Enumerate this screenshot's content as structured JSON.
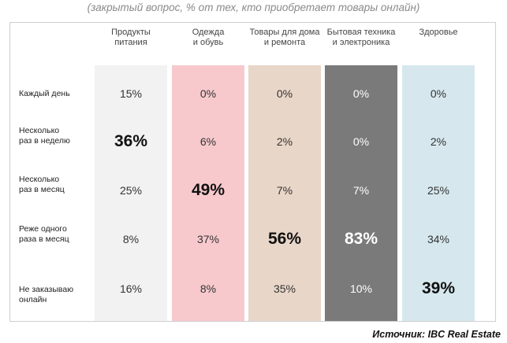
{
  "subtitle": "(закрытый вопрос, % от тех, кто приобретает товары онлайн)",
  "source": "Источник: IBC Real Estate",
  "colors": [
    "#f2f2f2",
    "#f7c9cd",
    "#e8d6c8",
    "#7a7a7a",
    "#d6e8ee"
  ],
  "chart_data": {
    "type": "table",
    "columns": [
      [
        "Продукты",
        "питания"
      ],
      [
        "Одежда",
        "и обувь"
      ],
      [
        "Товары для дома",
        "и ремонта"
      ],
      [
        "Бытовая техника",
        "и электроника"
      ],
      [
        "Здоровье"
      ]
    ],
    "rows": [
      [
        "Каждый день"
      ],
      [
        "Несколько",
        "раз в неделю"
      ],
      [
        "Несколько",
        "раз в месяц"
      ],
      [
        "Реже одного",
        "раза в месяц"
      ],
      [
        "Не заказываю",
        "онлайн"
      ]
    ],
    "values": [
      [
        15,
        0,
        0,
        0,
        0
      ],
      [
        36,
        6,
        2,
        0,
        2
      ],
      [
        25,
        49,
        7,
        7,
        25
      ],
      [
        8,
        37,
        56,
        83,
        34
      ],
      [
        16,
        8,
        35,
        10,
        39
      ]
    ],
    "unit": "%",
    "highlight": [
      [
        1,
        0
      ],
      [
        2,
        1
      ],
      [
        3,
        2
      ],
      [
        3,
        3
      ],
      [
        4,
        4
      ]
    ]
  }
}
